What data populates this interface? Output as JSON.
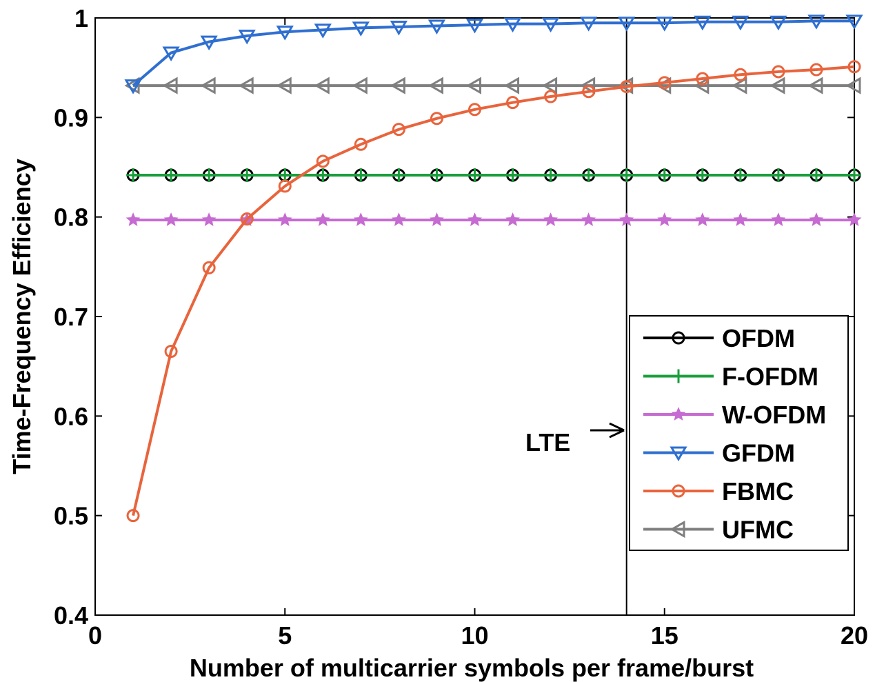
{
  "chart_data": {
    "type": "line",
    "xlabel": "Number of multicarrier symbols per frame/burst",
    "ylabel": "Time-Frequency Efficiency",
    "xlim": [
      0,
      20
    ],
    "ylim": [
      0.4,
      1
    ],
    "xticks": [
      0,
      5,
      10,
      15,
      20
    ],
    "xtick_labels": [
      "0",
      "5",
      "10",
      "15",
      "20"
    ],
    "yticks": [
      0.4,
      0.5,
      0.6,
      0.7,
      0.8,
      0.9,
      1
    ],
    "ytick_labels": [
      "0.4",
      "0.5",
      "0.6",
      "0.7",
      "0.8",
      "0.9",
      "1"
    ],
    "grid": false,
    "legend_position": "lower-right",
    "x": [
      1,
      2,
      3,
      4,
      5,
      6,
      7,
      8,
      9,
      10,
      11,
      12,
      13,
      14,
      15,
      16,
      17,
      18,
      19,
      20
    ],
    "series": [
      {
        "name": "OFDM",
        "color": "#000000",
        "marker": "circle",
        "values": [
          0.842,
          0.842,
          0.842,
          0.842,
          0.842,
          0.842,
          0.842,
          0.842,
          0.842,
          0.842,
          0.842,
          0.842,
          0.842,
          0.842,
          0.842,
          0.842,
          0.842,
          0.842,
          0.842,
          0.842
        ]
      },
      {
        "name": "F-OFDM",
        "color": "#1a9e3c",
        "marker": "plus",
        "values": [
          0.842,
          0.842,
          0.842,
          0.842,
          0.842,
          0.842,
          0.842,
          0.842,
          0.842,
          0.842,
          0.842,
          0.842,
          0.842,
          0.842,
          0.842,
          0.842,
          0.842,
          0.842,
          0.842,
          0.842
        ]
      },
      {
        "name": "W-OFDM",
        "color": "#c66bd1",
        "marker": "star",
        "values": [
          0.797,
          0.797,
          0.797,
          0.797,
          0.797,
          0.797,
          0.797,
          0.797,
          0.797,
          0.797,
          0.797,
          0.797,
          0.797,
          0.797,
          0.797,
          0.797,
          0.797,
          0.797,
          0.797,
          0.797
        ]
      },
      {
        "name": "GFDM",
        "color": "#2f6fd0",
        "marker": "triangle-down",
        "values": [
          0.932,
          0.965,
          0.976,
          0.982,
          0.986,
          0.988,
          0.99,
          0.991,
          0.992,
          0.993,
          0.994,
          0.994,
          0.995,
          0.995,
          0.995,
          0.996,
          0.996,
          0.996,
          0.997,
          0.997
        ]
      },
      {
        "name": "FBMC",
        "color": "#e8643c",
        "marker": "circle",
        "values": [
          0.5,
          0.665,
          0.749,
          0.798,
          0.831,
          0.856,
          0.873,
          0.888,
          0.899,
          0.908,
          0.915,
          0.921,
          0.926,
          0.931,
          0.935,
          0.939,
          0.943,
          0.946,
          0.948,
          0.951
        ]
      },
      {
        "name": "UFMC",
        "color": "#7f7f7f",
        "marker": "triangle-left",
        "values": [
          0.932,
          0.932,
          0.932,
          0.932,
          0.932,
          0.932,
          0.932,
          0.932,
          0.932,
          0.932,
          0.932,
          0.932,
          0.932,
          0.932,
          0.932,
          0.932,
          0.932,
          0.932,
          0.932,
          0.932
        ]
      }
    ],
    "reference_line": {
      "x": 14
    },
    "annotation": {
      "text": "LTE"
    }
  }
}
